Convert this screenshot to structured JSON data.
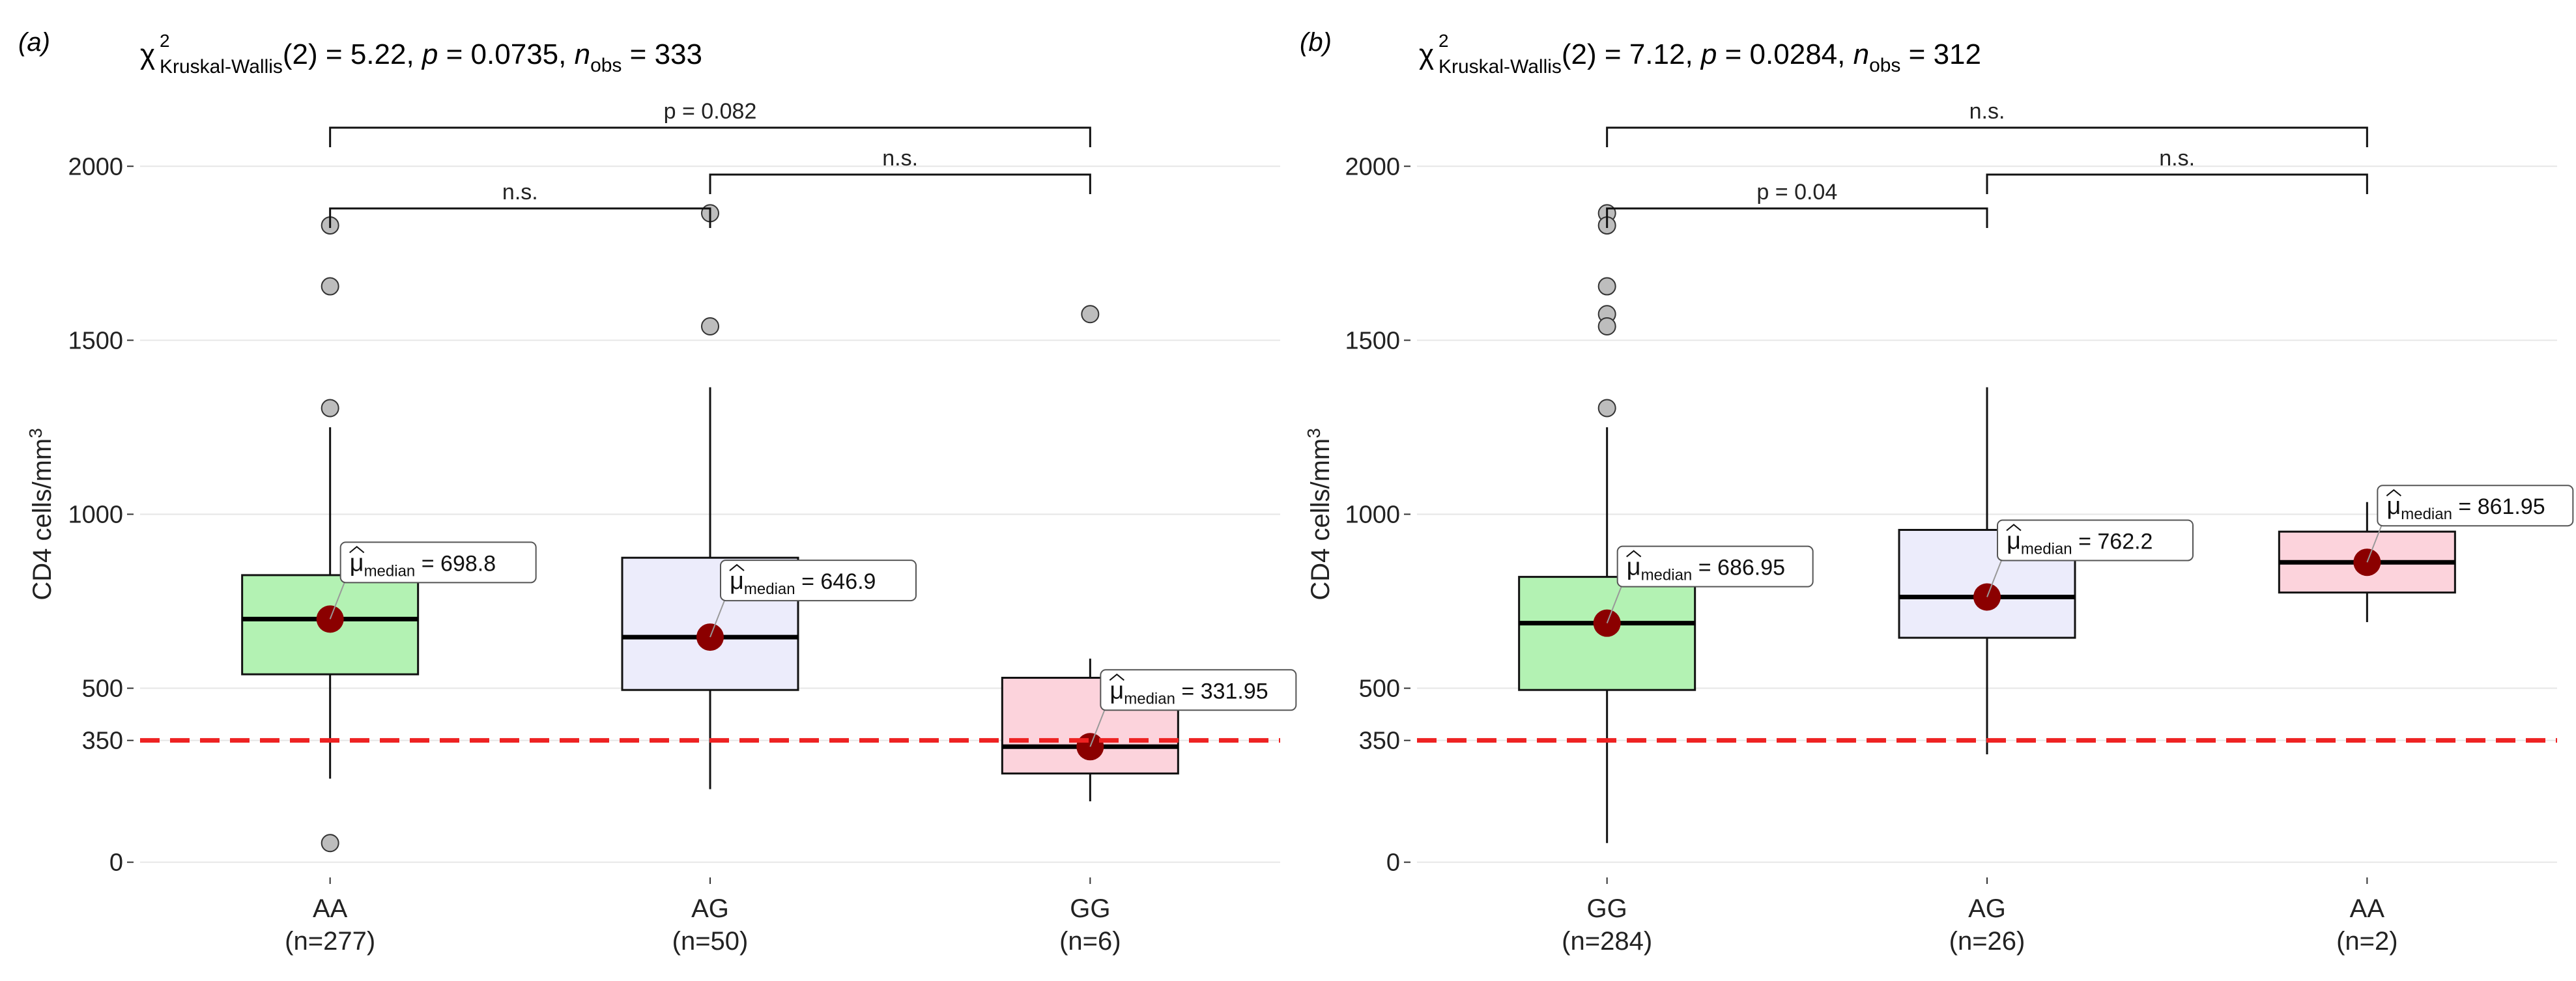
{
  "chart_data": [
    {
      "type": "box",
      "panel": "(a)",
      "title_parts": [
        "χ",
        "2",
        "Kruskal-Wallis",
        "(2) = 5.22, ",
        "p",
        " = 0.0735, ",
        "n",
        "obs",
        " = 333"
      ],
      "ylabel_parts": [
        "CD4 cells/mm",
        "3"
      ],
      "ylim": [
        -40,
        2300
      ],
      "yticks": [
        0,
        350,
        500,
        1000,
        1500,
        2000
      ],
      "ytick_labels": [
        "0",
        "350",
        "500",
        "1000",
        "1500",
        "2000"
      ],
      "threshold": 350,
      "median_symbol": "μ",
      "median_subscript": "median",
      "categories": [
        {
          "label": "AA",
          "n_label": "(n=277)",
          "fill": "#b3f2b3",
          "q1": 540,
          "median": 698.8,
          "q3": 825,
          "whisker_low": 240,
          "whisker_high": 1250,
          "outliers": [
            1830,
            1655,
            1305,
            55
          ],
          "median_text": "698.8"
        },
        {
          "label": "AG",
          "n_label": "(n=50)",
          "fill": "#ececfb",
          "q1": 495,
          "median": 646.9,
          "q3": 875,
          "whisker_low": 210,
          "whisker_high": 1365,
          "outliers": [
            1865,
            1540
          ],
          "median_text": "646.9"
        },
        {
          "label": "GG",
          "n_label": "(n=6)",
          "fill": "#fcd3dc",
          "q1": 255,
          "median": 331.95,
          "q3": 530,
          "whisker_low": 175,
          "whisker_high": 585,
          "outliers": [
            1575
          ],
          "median_text": "331.95"
        }
      ],
      "comparisons": [
        {
          "from": 0,
          "to": 1,
          "label": "n.s.",
          "level": 0
        },
        {
          "from": 1,
          "to": 2,
          "label": "n.s.",
          "level": 1
        },
        {
          "from": 0,
          "to": 2,
          "label": "p = 0.082",
          "level": 2
        }
      ]
    },
    {
      "type": "box",
      "panel": "(b)",
      "title_parts": [
        "χ",
        "2",
        "Kruskal-Wallis",
        "(2) = 7.12, ",
        "p",
        " = 0.0284, ",
        "n",
        "obs",
        " = 312"
      ],
      "ylabel_parts": [
        "CD4 cells/mm",
        "3"
      ],
      "ylim": [
        -40,
        2300
      ],
      "yticks": [
        0,
        350,
        500,
        1000,
        1500,
        2000
      ],
      "ytick_labels": [
        "0",
        "350",
        "500",
        "1000",
        "1500",
        "2000"
      ],
      "threshold": 350,
      "median_symbol": "μ",
      "median_subscript": "median",
      "categories": [
        {
          "label": "GG",
          "n_label": "(n=284)",
          "fill": "#b3f2b3",
          "q1": 495,
          "median": 686.95,
          "q3": 820,
          "whisker_low": 55,
          "whisker_high": 1250,
          "outliers": [
            1865,
            1830,
            1655,
            1575,
            1540,
            1305
          ],
          "median_text": "686.95"
        },
        {
          "label": "AG",
          "n_label": "(n=26)",
          "fill": "#ececfb",
          "q1": 645,
          "median": 762.2,
          "q3": 955,
          "whisker_low": 310,
          "whisker_high": 1365,
          "outliers": [],
          "median_text": "762.2"
        },
        {
          "label": "AA",
          "n_label": "(n=2)",
          "fill": "#fcd3dc",
          "q1": 775,
          "median": 861.95,
          "q3": 950,
          "whisker_low": 690,
          "whisker_high": 1035,
          "outliers": [],
          "median_text": "861.95"
        }
      ],
      "comparisons": [
        {
          "from": 0,
          "to": 1,
          "label": "p = 0.04",
          "level": 0
        },
        {
          "from": 1,
          "to": 2,
          "label": "n.s.",
          "level": 1
        },
        {
          "from": 0,
          "to": 2,
          "label": "n.s.",
          "level": 2
        }
      ]
    }
  ],
  "colors": {
    "threshold": "#ee2222",
    "median_dot": "#8b0000",
    "outlier_fill": "#bdbdbd",
    "grid": "#e6e6e6"
  }
}
